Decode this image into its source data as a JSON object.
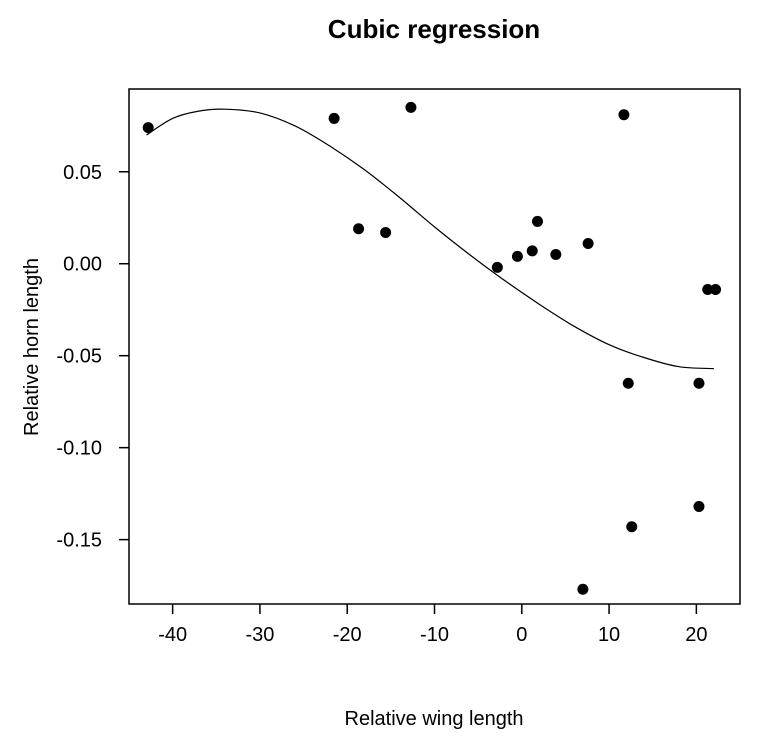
{
  "chart_data": {
    "type": "scatter",
    "title": "Cubic regression",
    "xlabel": "Relative wing length",
    "ylabel": "Relative horn length",
    "xlim": [
      -45,
      25
    ],
    "ylim": [
      -0.185,
      0.095
    ],
    "x_ticks": [
      -40,
      -30,
      -20,
      -10,
      0,
      10,
      20
    ],
    "x_tick_labels": [
      "-40",
      "-30",
      "-20",
      "-10",
      "0",
      "10",
      "20"
    ],
    "y_ticks": [
      0.05,
      0.0,
      -0.05,
      -0.1,
      -0.15
    ],
    "y_tick_labels": [
      "0.05",
      "0.00",
      "-0.05",
      "-0.10",
      "-0.15"
    ],
    "grid": false,
    "points": [
      {
        "x": -42.8,
        "y": 0.074
      },
      {
        "x": -21.5,
        "y": 0.079
      },
      {
        "x": -18.7,
        "y": 0.019
      },
      {
        "x": -15.6,
        "y": 0.017
      },
      {
        "x": -12.7,
        "y": 0.085
      },
      {
        "x": -2.8,
        "y": -0.002
      },
      {
        "x": -0.5,
        "y": 0.004
      },
      {
        "x": 1.2,
        "y": 0.007
      },
      {
        "x": 1.8,
        "y": 0.023
      },
      {
        "x": 3.9,
        "y": 0.005
      },
      {
        "x": 7.6,
        "y": 0.011
      },
      {
        "x": 11.7,
        "y": 0.081
      },
      {
        "x": 12.2,
        "y": -0.065
      },
      {
        "x": 12.6,
        "y": -0.143
      },
      {
        "x": 7.0,
        "y": -0.177
      },
      {
        "x": 20.3,
        "y": -0.065
      },
      {
        "x": 20.3,
        "y": -0.132
      },
      {
        "x": 21.3,
        "y": -0.014
      },
      {
        "x": 22.2,
        "y": -0.014
      }
    ],
    "fit_curve": {
      "x": [
        -43,
        -40,
        -37,
        -34,
        -30,
        -26,
        -22,
        -18,
        -14,
        -10,
        -6,
        -2,
        2,
        6,
        10,
        14,
        18,
        22
      ],
      "y": [
        0.07,
        0.079,
        0.083,
        0.084,
        0.082,
        0.075,
        0.064,
        0.051,
        0.036,
        0.02,
        0.005,
        -0.009,
        -0.022,
        -0.034,
        -0.044,
        -0.051,
        -0.056,
        -0.057
      ]
    }
  }
}
